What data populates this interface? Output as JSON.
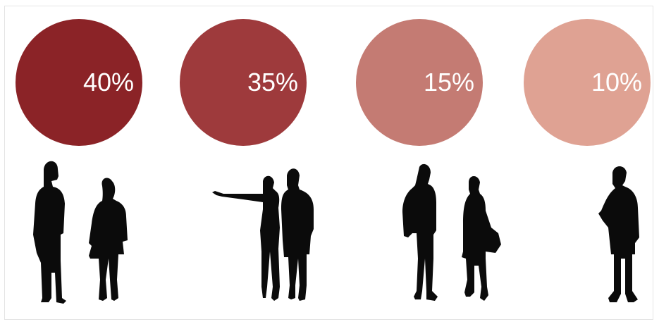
{
  "chart_data": {
    "type": "pie",
    "categories": [
      "40%",
      "35%",
      "15%",
      "10%"
    ],
    "values": [
      40,
      35,
      15,
      10
    ],
    "colors": [
      "#8b2327",
      "#9e3a3c",
      "#c47b73",
      "#dfa293"
    ],
    "icons": [
      "two-people-talking",
      "couple-pointing",
      "two-people-with-bags",
      "single-person"
    ]
  }
}
